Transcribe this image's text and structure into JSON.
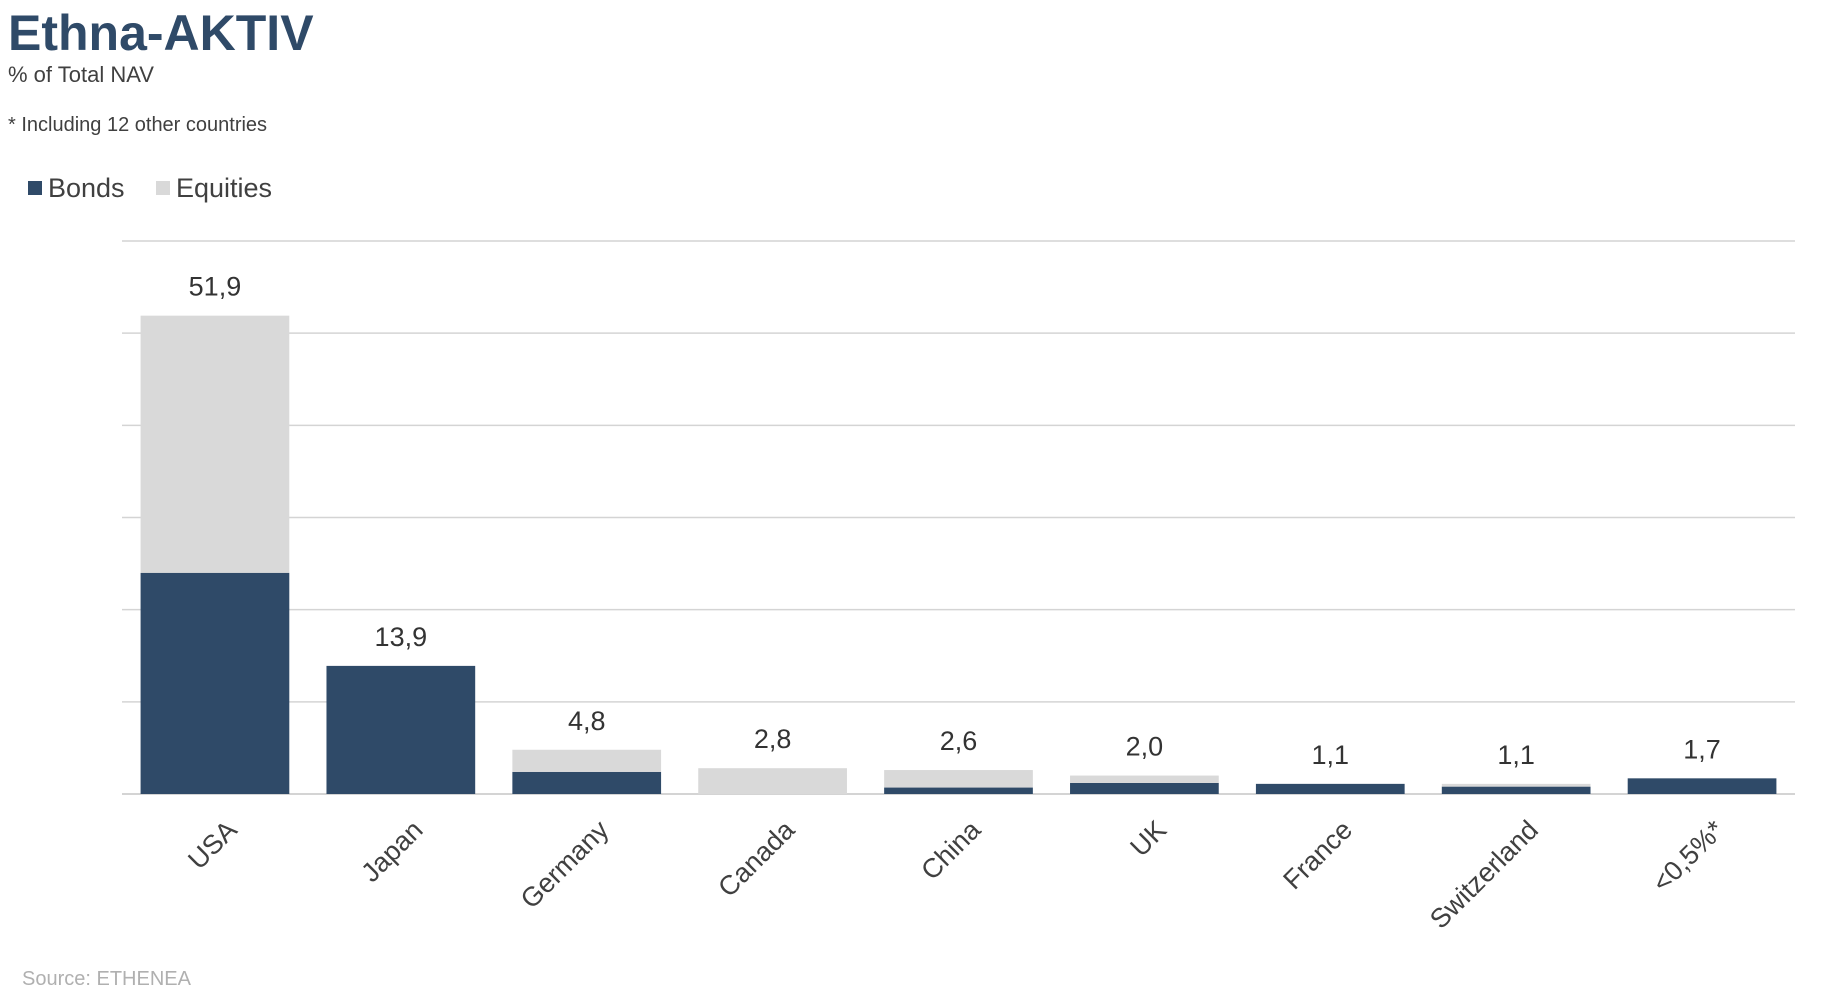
{
  "header": {
    "title": "Ethna-AKTIV",
    "subtitle": "% of Total NAV",
    "footnote": "* Including 12 other countries"
  },
  "source": "Source: ETHENEA",
  "colors": {
    "bonds": "#2f4a68",
    "equities": "#d9d9d9",
    "title": "#2f4a68",
    "grid": "#d4d4d4",
    "text": "#404040",
    "source": "#b0b0b0"
  },
  "chart_data": {
    "type": "bar",
    "stacked": true,
    "legend_position": "top-left",
    "grid": true,
    "ylim": [
      0,
      60
    ],
    "categories": [
      "USA",
      "Japan",
      "Germany",
      "Canada",
      "China",
      "UK",
      "France",
      "Switzerland",
      "<0,5%*"
    ],
    "series": [
      {
        "name": "Bonds",
        "values": [
          24.0,
          13.9,
          2.4,
          0.0,
          0.7,
          1.2,
          1.1,
          0.8,
          1.7
        ]
      },
      {
        "name": "Equities",
        "values": [
          27.9,
          0.0,
          2.4,
          2.8,
          1.9,
          0.8,
          0.0,
          0.3,
          0.0
        ]
      }
    ],
    "totals": [
      "51,9",
      "13,9",
      "4,8",
      "2,8",
      "2,6",
      "2,0",
      "1,1",
      "1,1",
      "1,7"
    ]
  }
}
